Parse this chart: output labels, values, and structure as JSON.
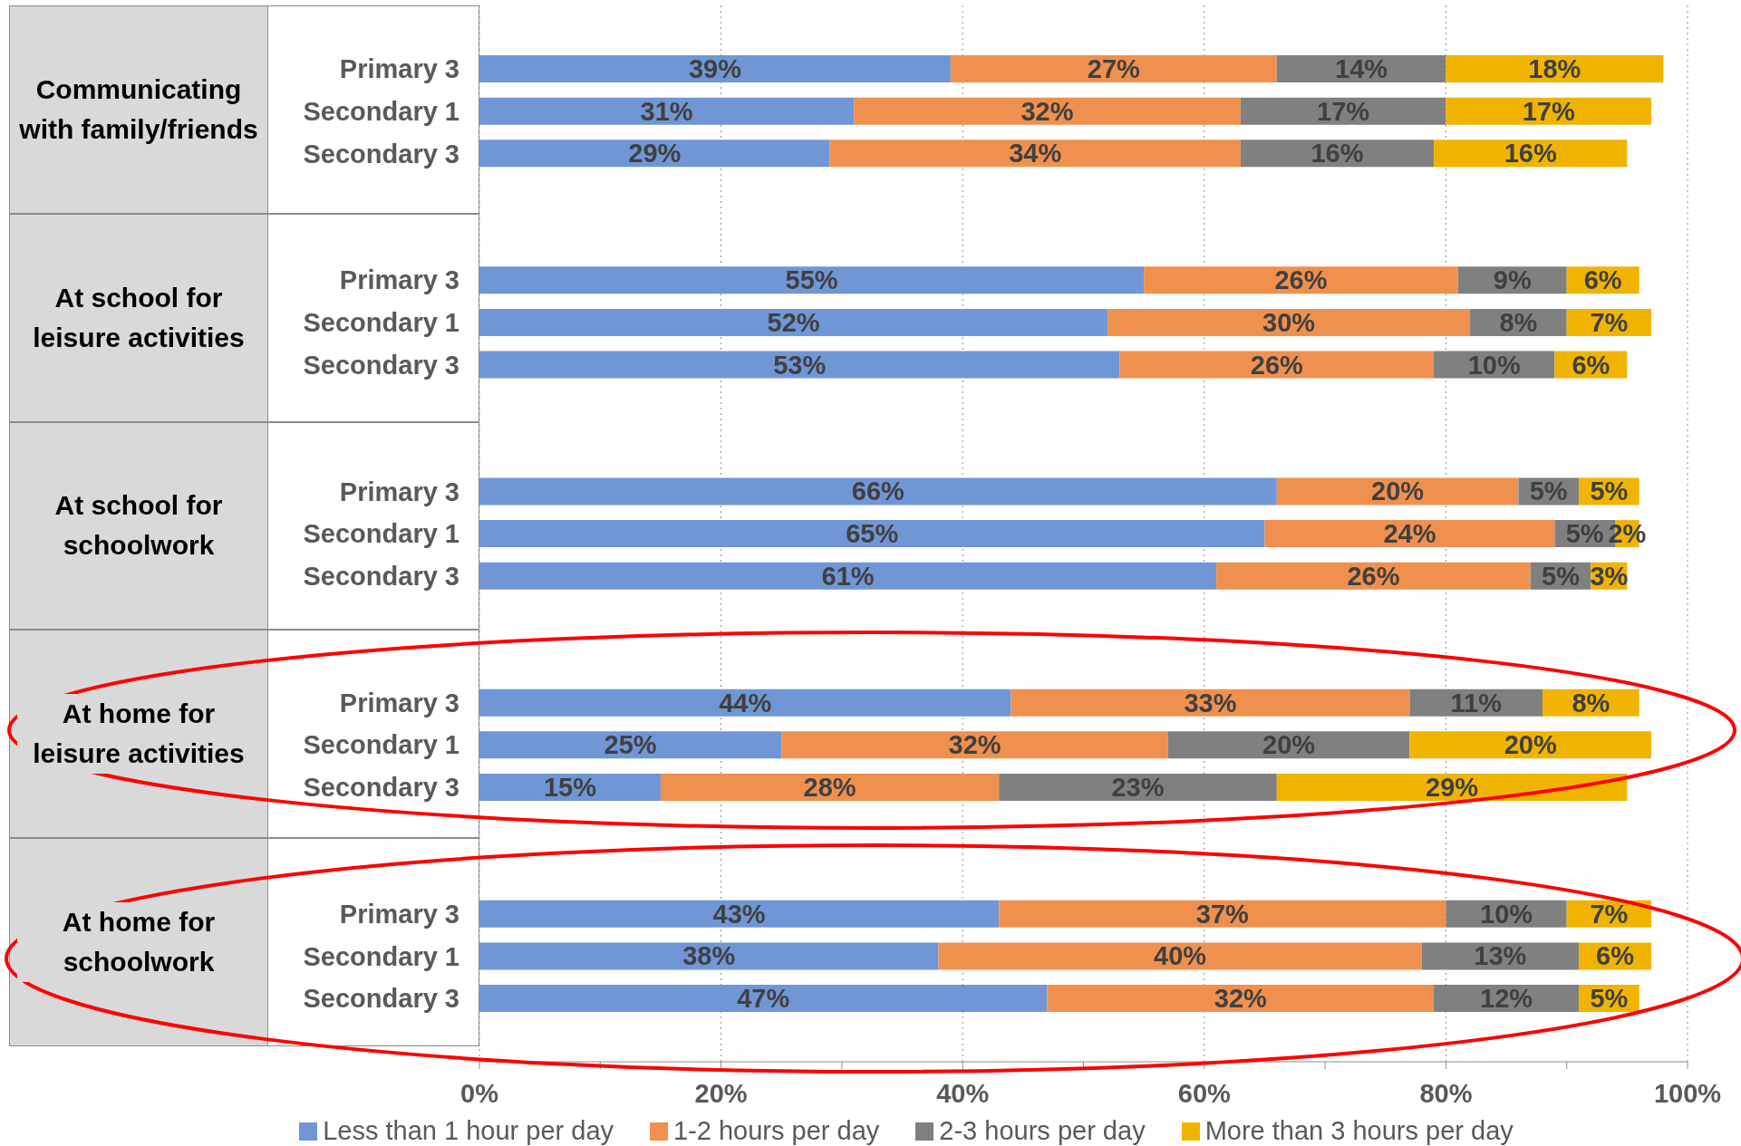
{
  "chart_data": {
    "type": "bar",
    "orientation": "horizontal",
    "stacked": true,
    "categories": [
      null,
      "Primary 3",
      "Secondary 1",
      "Secondary 3",
      null,
      null,
      "Primary 3",
      "Secondary 1",
      "Secondary 3",
      null,
      null,
      "Primary 3",
      "Secondary 1",
      "Secondary 3",
      null,
      null,
      "Primary 3",
      "Secondary 1",
      "Secondary 3",
      null,
      null,
      "Primary 3",
      "Secondary 1",
      "Secondary 3",
      null
    ],
    "series": [
      {
        "name": "Less than 1 hour per day",
        "color": "#7096d6",
        "values": [
          null,
          39,
          31,
          29,
          null,
          null,
          55,
          52,
          53,
          null,
          null,
          66,
          65,
          61,
          null,
          null,
          44,
          25,
          15,
          null,
          null,
          43,
          38,
          47,
          null
        ],
        "value_labels": [
          null,
          "39%",
          "31%",
          "29%",
          null,
          null,
          "55%",
          "52%",
          "53%",
          null,
          null,
          "66%",
          "65%",
          "61%",
          null,
          null,
          "44%",
          "25%",
          "15%",
          null,
          null,
          "43%",
          "38%",
          "47%",
          null
        ]
      },
      {
        "name": "1-2 hours per day",
        "color": "#f0904e",
        "values": [
          null,
          27,
          32,
          34,
          null,
          null,
          26,
          30,
          26,
          null,
          null,
          20,
          24,
          26,
          null,
          null,
          33,
          32,
          28,
          null,
          null,
          37,
          40,
          32,
          null
        ],
        "value_labels": [
          null,
          "27%",
          "32%",
          "34%",
          null,
          null,
          "26%",
          "30%",
          "26%",
          null,
          null,
          "20%",
          "24%",
          "26%",
          null,
          null,
          "33%",
          "32%",
          "28%",
          null,
          null,
          "37%",
          "40%",
          "32%",
          null
        ]
      },
      {
        "name": "2-3 hours per day",
        "color": "#808080",
        "values": [
          null,
          14,
          17,
          16,
          null,
          null,
          9,
          8,
          10,
          null,
          null,
          5,
          5,
          5,
          null,
          null,
          11,
          20,
          23,
          null,
          null,
          10,
          13,
          12,
          null
        ],
        "value_labels": [
          null,
          "14%",
          "17%",
          "16%",
          null,
          null,
          "9%",
          "8%",
          "10%",
          null,
          null,
          "5%",
          "5%",
          "5%",
          null,
          null,
          "11%",
          "20%",
          "23%",
          null,
          null,
          "10%",
          "13%",
          "12%",
          null
        ]
      },
      {
        "name": "More than 3 hours per day",
        "color": "#f0b400",
        "values": [
          null,
          18,
          17,
          16,
          null,
          null,
          6,
          7,
          6,
          null,
          null,
          5,
          2,
          3,
          null,
          null,
          8,
          20,
          29,
          null,
          null,
          7,
          6,
          5,
          null
        ],
        "value_labels": [
          null,
          "18%",
          "17%",
          "16%",
          null,
          null,
          "6%",
          "7%",
          "6%",
          null,
          null,
          "5%",
          "2%",
          "3%",
          null,
          null,
          "8%",
          "20%",
          "29%",
          null,
          null,
          "7%",
          "6%",
          "5%",
          null
        ]
      }
    ],
    "annotations": [
      "Communicating with family/friends",
      "At school for leisure activities",
      "At school for schoolwork",
      "At home for leisure activities",
      "At home for schoolwork"
    ],
    "xlim": [
      0,
      100
    ],
    "xticks": [
      {
        "value": 0,
        "label": "0%"
      },
      {
        "value": 10,
        "label": null
      },
      {
        "value": 20,
        "label": "20%"
      },
      {
        "value": 30,
        "label": null
      },
      {
        "value": 40,
        "label": "40%"
      },
      {
        "value": 50,
        "label": null
      },
      {
        "value": 60,
        "label": "60%"
      },
      {
        "value": 70,
        "label": null
      },
      {
        "value": 80,
        "label": "80%"
      },
      {
        "value": 90,
        "label": null
      },
      {
        "value": 100,
        "label": "100%"
      }
    ],
    "grid": "x",
    "legend": "bottom"
  }
}
